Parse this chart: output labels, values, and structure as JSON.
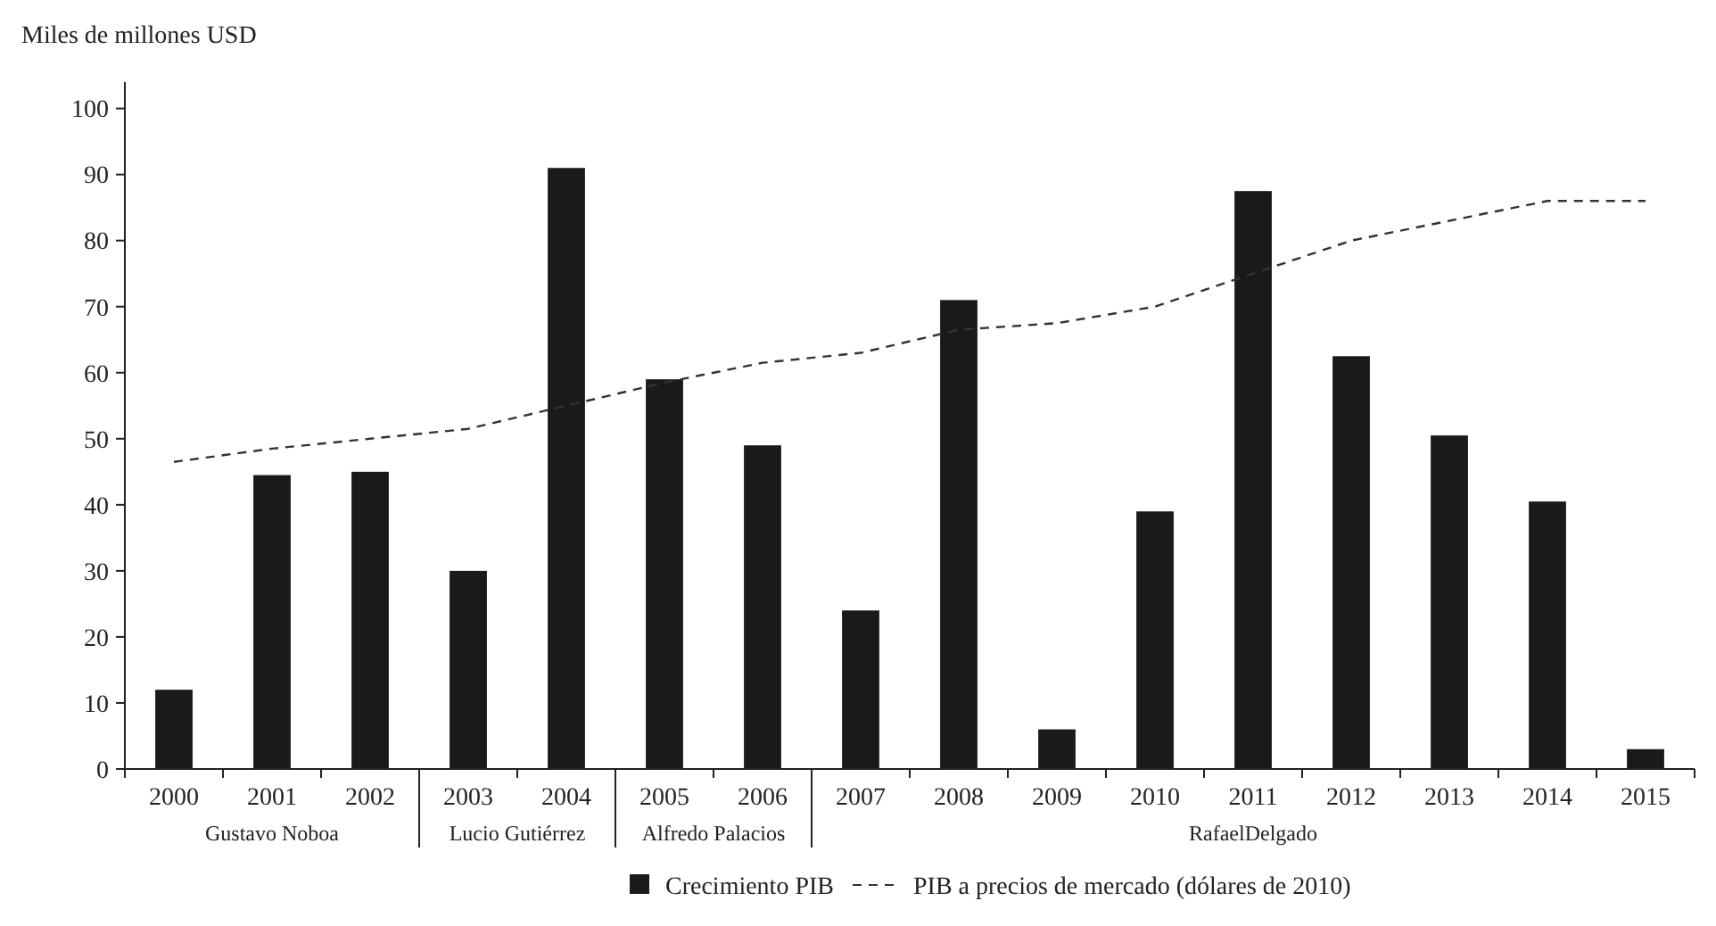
{
  "chart_data": {
    "type": "bar",
    "ylabel": "Miles de millones USD",
    "categories": [
      "2000",
      "2001",
      "2002",
      "2003",
      "2004",
      "2005",
      "2006",
      "2007",
      "2008",
      "2009",
      "2010",
      "2011",
      "2012",
      "2013",
      "2014",
      "2015"
    ],
    "series": [
      {
        "name": "Crecimiento PIB",
        "color": "#1a1a1a",
        "values": [
          12,
          44.5,
          45,
          30,
          91,
          59,
          49,
          24,
          71,
          6,
          39,
          87.5,
          62.5,
          50.5,
          40.5,
          3
        ]
      },
      {
        "name": "PIB a precios de mercado (dólares de 2010)",
        "type": "line",
        "color": "#333333",
        "line_style": "dashed",
        "marker": "none",
        "values": [
          46.5,
          48.5,
          50,
          51.5,
          55,
          58.5,
          61.5,
          63,
          66.5,
          67.5,
          70,
          75,
          80,
          83,
          86,
          86
        ]
      }
    ],
    "ylim": [
      0,
      104
    ],
    "yticks": [
      0,
      10,
      20,
      30,
      40,
      50,
      60,
      70,
      80,
      90,
      100
    ],
    "grid": false,
    "legend": "bottom",
    "annotations": [
      "Gustavo Noboa",
      "Lucio Gutiérrez",
      "Alfredo Palacios",
      "RafaelDelgado"
    ]
  }
}
